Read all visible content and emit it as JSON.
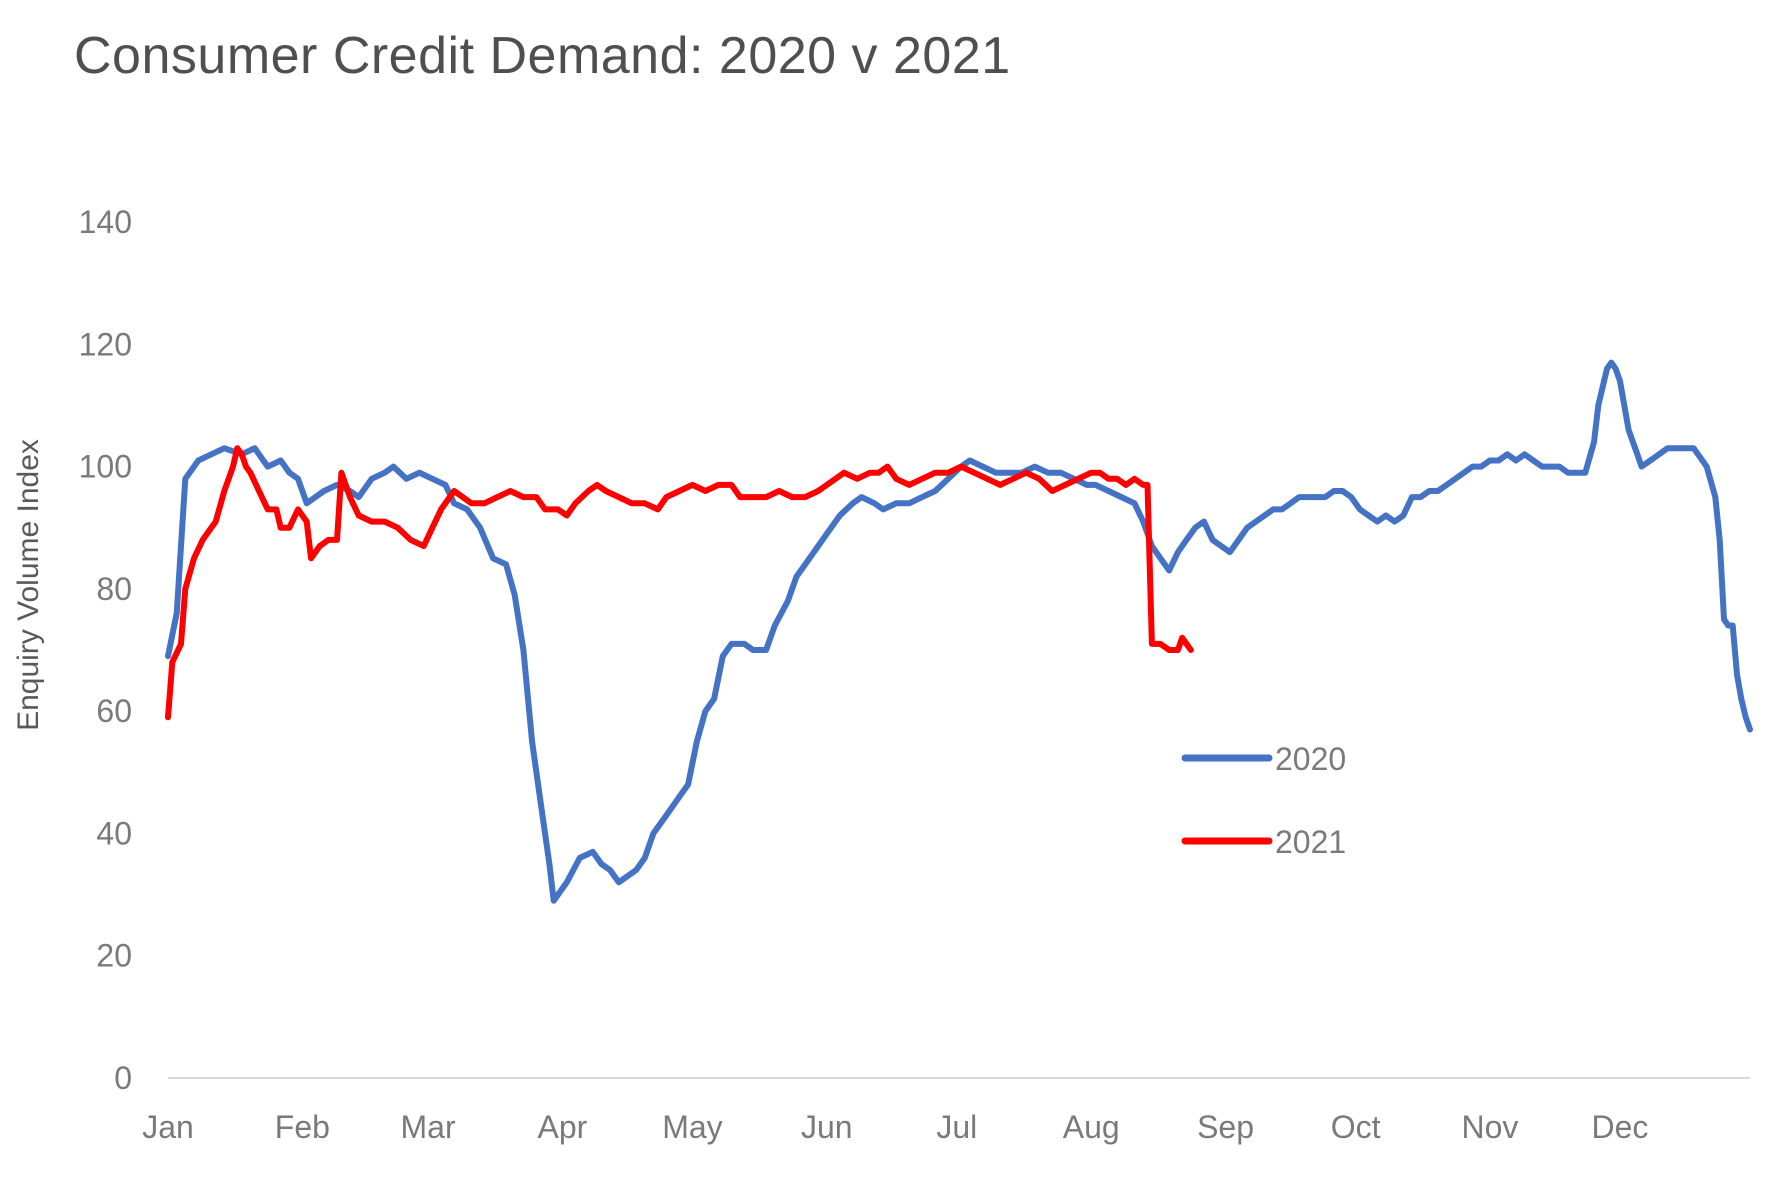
{
  "chart_data": {
    "type": "line",
    "title": "Consumer Credit Demand: 2020 v 2021",
    "ylabel": "Enquiry Volume Index",
    "xlabel": "",
    "ylim": [
      0,
      140
    ],
    "yticks": [
      0,
      20,
      40,
      60,
      80,
      100,
      120,
      140
    ],
    "xlim": [
      1,
      366
    ],
    "months": [
      {
        "label": "Jan",
        "day": 1
      },
      {
        "label": "Feb",
        "day": 32
      },
      {
        "label": "Mar",
        "day": 61
      },
      {
        "label": "Apr",
        "day": 92
      },
      {
        "label": "May",
        "day": 122
      },
      {
        "label": "Jun",
        "day": 153
      },
      {
        "label": "Jul",
        "day": 183
      },
      {
        "label": "Aug",
        "day": 214
      },
      {
        "label": "Sep",
        "day": 245
      },
      {
        "label": "Oct",
        "day": 275
      },
      {
        "label": "Nov",
        "day": 306
      },
      {
        "label": "Dec",
        "day": 336
      }
    ],
    "legend_placement": "center-right",
    "grid": false,
    "series": [
      {
        "name": "2020",
        "color": "#4472c4",
        "points": [
          [
            1,
            69
          ],
          [
            3,
            76
          ],
          [
            5,
            98
          ],
          [
            8,
            101
          ],
          [
            11,
            102
          ],
          [
            14,
            103
          ],
          [
            18,
            102
          ],
          [
            21,
            103
          ],
          [
            24,
            100
          ],
          [
            27,
            101
          ],
          [
            29,
            99
          ],
          [
            31,
            98
          ],
          [
            33,
            94
          ],
          [
            35,
            95
          ],
          [
            37,
            96
          ],
          [
            40,
            97
          ],
          [
            43,
            96
          ],
          [
            45,
            95
          ],
          [
            48,
            98
          ],
          [
            51,
            99
          ],
          [
            53,
            100
          ],
          [
            56,
            98
          ],
          [
            59,
            99
          ],
          [
            62,
            98
          ],
          [
            65,
            97
          ],
          [
            67,
            94
          ],
          [
            70,
            93
          ],
          [
            73,
            90
          ],
          [
            76,
            85
          ],
          [
            79,
            84
          ],
          [
            81,
            79
          ],
          [
            83,
            70
          ],
          [
            85,
            55
          ],
          [
            87,
            45
          ],
          [
            89,
            35
          ],
          [
            90,
            29
          ],
          [
            93,
            32
          ],
          [
            96,
            36
          ],
          [
            99,
            37
          ],
          [
            101,
            35
          ],
          [
            103,
            34
          ],
          [
            105,
            32
          ],
          [
            107,
            33
          ],
          [
            109,
            34
          ],
          [
            111,
            36
          ],
          [
            113,
            40
          ],
          [
            115,
            42
          ],
          [
            117,
            44
          ],
          [
            119,
            46
          ],
          [
            121,
            48
          ],
          [
            123,
            55
          ],
          [
            125,
            60
          ],
          [
            127,
            62
          ],
          [
            129,
            69
          ],
          [
            131,
            71
          ],
          [
            134,
            71
          ],
          [
            136,
            70
          ],
          [
            139,
            70
          ],
          [
            141,
            74
          ],
          [
            144,
            78
          ],
          [
            146,
            82
          ],
          [
            149,
            85
          ],
          [
            151,
            87
          ],
          [
            153,
            89
          ],
          [
            156,
            92
          ],
          [
            159,
            94
          ],
          [
            161,
            95
          ],
          [
            164,
            94
          ],
          [
            166,
            93
          ],
          [
            169,
            94
          ],
          [
            172,
            94
          ],
          [
            175,
            95
          ],
          [
            178,
            96
          ],
          [
            181,
            98
          ],
          [
            184,
            100
          ],
          [
            186,
            101
          ],
          [
            189,
            100
          ],
          [
            192,
            99
          ],
          [
            195,
            99
          ],
          [
            198,
            99
          ],
          [
            201,
            100
          ],
          [
            204,
            99
          ],
          [
            207,
            99
          ],
          [
            210,
            98
          ],
          [
            213,
            97
          ],
          [
            215,
            97
          ],
          [
            218,
            96
          ],
          [
            221,
            95
          ],
          [
            224,
            94
          ],
          [
            226,
            91
          ],
          [
            228,
            87
          ],
          [
            230,
            85
          ],
          [
            232,
            83
          ],
          [
            234,
            86
          ],
          [
            236,
            88
          ],
          [
            238,
            90
          ],
          [
            240,
            91
          ],
          [
            242,
            88
          ],
          [
            244,
            87
          ],
          [
            246,
            86
          ],
          [
            248,
            88
          ],
          [
            250,
            90
          ],
          [
            252,
            91
          ],
          [
            254,
            92
          ],
          [
            256,
            93
          ],
          [
            258,
            93
          ],
          [
            260,
            94
          ],
          [
            262,
            95
          ],
          [
            264,
            95
          ],
          [
            266,
            95
          ],
          [
            268,
            95
          ],
          [
            270,
            96
          ],
          [
            272,
            96
          ],
          [
            274,
            95
          ],
          [
            276,
            93
          ],
          [
            278,
            92
          ],
          [
            280,
            91
          ],
          [
            282,
            92
          ],
          [
            284,
            91
          ],
          [
            286,
            92
          ],
          [
            288,
            95
          ],
          [
            290,
            95
          ],
          [
            292,
            96
          ],
          [
            294,
            96
          ],
          [
            296,
            97
          ],
          [
            298,
            98
          ],
          [
            300,
            99
          ],
          [
            302,
            100
          ],
          [
            304,
            100
          ],
          [
            306,
            101
          ],
          [
            308,
            101
          ],
          [
            310,
            102
          ],
          [
            312,
            101
          ],
          [
            314,
            102
          ],
          [
            316,
            101
          ],
          [
            318,
            100
          ],
          [
            320,
            100
          ],
          [
            322,
            100
          ],
          [
            324,
            99
          ],
          [
            326,
            99
          ],
          [
            328,
            99
          ],
          [
            330,
            104
          ],
          [
            331,
            110
          ],
          [
            333,
            116
          ],
          [
            334,
            117
          ],
          [
            335,
            116
          ],
          [
            336,
            114
          ],
          [
            338,
            106
          ],
          [
            340,
            102
          ],
          [
            341,
            100
          ],
          [
            343,
            101
          ],
          [
            345,
            102
          ],
          [
            347,
            103
          ],
          [
            349,
            103
          ],
          [
            351,
            103
          ],
          [
            353,
            103
          ],
          [
            354,
            102
          ],
          [
            356,
            100
          ],
          [
            358,
            95
          ],
          [
            359,
            88
          ],
          [
            360,
            75
          ],
          [
            361,
            74
          ],
          [
            362,
            74
          ],
          [
            363,
            66
          ],
          [
            364,
            62
          ],
          [
            365,
            59
          ],
          [
            366,
            57
          ]
        ]
      },
      {
        "name": "2021",
        "color": "#ff0000",
        "points": [
          [
            1,
            59
          ],
          [
            2,
            68
          ],
          [
            4,
            71
          ],
          [
            5,
            80
          ],
          [
            7,
            85
          ],
          [
            9,
            88
          ],
          [
            11,
            90
          ],
          [
            12,
            91
          ],
          [
            14,
            96
          ],
          [
            16,
            100
          ],
          [
            17,
            103
          ],
          [
            18,
            102
          ],
          [
            19,
            100
          ],
          [
            20,
            99
          ],
          [
            22,
            96
          ],
          [
            24,
            93
          ],
          [
            26,
            93
          ],
          [
            27,
            90
          ],
          [
            29,
            90
          ],
          [
            31,
            93
          ],
          [
            33,
            91
          ],
          [
            34,
            85
          ],
          [
            36,
            87
          ],
          [
            38,
            88
          ],
          [
            40,
            88
          ],
          [
            41,
            99
          ],
          [
            43,
            95
          ],
          [
            45,
            92
          ],
          [
            48,
            91
          ],
          [
            51,
            91
          ],
          [
            54,
            90
          ],
          [
            57,
            88
          ],
          [
            60,
            87
          ],
          [
            62,
            90
          ],
          [
            64,
            93
          ],
          [
            66,
            95
          ],
          [
            67,
            96
          ],
          [
            69,
            95
          ],
          [
            71,
            94
          ],
          [
            74,
            94
          ],
          [
            77,
            95
          ],
          [
            80,
            96
          ],
          [
            83,
            95
          ],
          [
            86,
            95
          ],
          [
            88,
            93
          ],
          [
            91,
            93
          ],
          [
            93,
            92
          ],
          [
            95,
            94
          ],
          [
            98,
            96
          ],
          [
            100,
            97
          ],
          [
            102,
            96
          ],
          [
            105,
            95
          ],
          [
            108,
            94
          ],
          [
            111,
            94
          ],
          [
            114,
            93
          ],
          [
            116,
            95
          ],
          [
            119,
            96
          ],
          [
            122,
            97
          ],
          [
            125,
            96
          ],
          [
            128,
            97
          ],
          [
            131,
            97
          ],
          [
            133,
            95
          ],
          [
            136,
            95
          ],
          [
            139,
            95
          ],
          [
            142,
            96
          ],
          [
            145,
            95
          ],
          [
            148,
            95
          ],
          [
            151,
            96
          ],
          [
            153,
            97
          ],
          [
            155,
            98
          ],
          [
            157,
            99
          ],
          [
            160,
            98
          ],
          [
            163,
            99
          ],
          [
            165,
            99
          ],
          [
            167,
            100
          ],
          [
            169,
            98
          ],
          [
            172,
            97
          ],
          [
            175,
            98
          ],
          [
            178,
            99
          ],
          [
            181,
            99
          ],
          [
            184,
            100
          ],
          [
            187,
            99
          ],
          [
            190,
            98
          ],
          [
            193,
            97
          ],
          [
            196,
            98
          ],
          [
            199,
            99
          ],
          [
            202,
            98
          ],
          [
            205,
            96
          ],
          [
            208,
            97
          ],
          [
            211,
            98
          ],
          [
            214,
            99
          ],
          [
            216,
            99
          ],
          [
            218,
            98
          ],
          [
            220,
            98
          ],
          [
            222,
            97
          ],
          [
            224,
            98
          ],
          [
            226,
            97
          ],
          [
            227,
            97
          ],
          [
            228,
            71
          ],
          [
            230,
            71
          ],
          [
            232,
            70
          ],
          [
            234,
            70
          ],
          [
            235,
            72
          ],
          [
            236,
            71
          ],
          [
            237,
            70
          ]
        ]
      }
    ]
  }
}
